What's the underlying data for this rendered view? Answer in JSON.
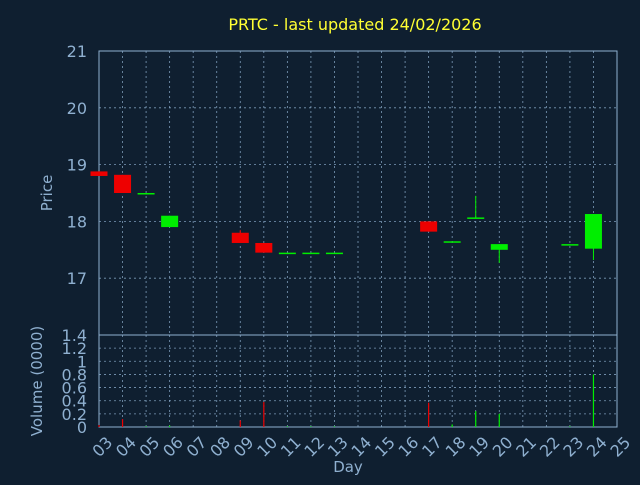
{
  "chart_data": {
    "type": "candlestick",
    "title": "PRTC - last updated 24/02/2026",
    "colors": {
      "background": "#0f1f30",
      "title": "#ffff33",
      "axis_text": "#8fb0d0",
      "axis_line": "#8fb0d0",
      "grid": "#8fb0d0",
      "up": "#00ee00",
      "down": "#ee0000"
    },
    "xlabel": "Day",
    "x_ticks": [
      "03",
      "04",
      "05",
      "06",
      "07",
      "08",
      "09",
      "10",
      "11",
      "12",
      "13",
      "14",
      "15",
      "16",
      "17",
      "18",
      "19",
      "20",
      "21",
      "22",
      "23",
      "24",
      "25"
    ],
    "xlim": [
      3,
      25
    ],
    "price_panel": {
      "ylabel": "Price",
      "ylim": [
        16.0,
        21.0
      ],
      "y_ticks": [
        {
          "value": 21,
          "label": "21"
        },
        {
          "value": 20,
          "label": "20"
        },
        {
          "value": 19,
          "label": "19"
        },
        {
          "value": 18,
          "label": "18"
        },
        {
          "value": 17,
          "label": "17"
        }
      ]
    },
    "volume_panel": {
      "ylabel": "Volume (0000)",
      "ylim": [
        0,
        1.4
      ],
      "y_ticks": [
        {
          "value": 0,
          "label": "0"
        },
        {
          "value": 0.2,
          "label": "0.2"
        },
        {
          "value": 0.4,
          "label": "0.4"
        },
        {
          "value": 0.6,
          "label": "0.6"
        },
        {
          "value": 0.8,
          "label": "0.8"
        },
        {
          "value": 1.0,
          "label": "1"
        },
        {
          "value": 1.2,
          "label": "1.2"
        },
        {
          "value": 1.4,
          "label": "1.4"
        }
      ]
    },
    "candles": [
      {
        "day": 3,
        "open": 18.88,
        "high": 18.88,
        "low": 18.8,
        "close": 18.8,
        "volume": 0.03
      },
      {
        "day": 4,
        "open": 18.82,
        "high": 18.82,
        "low": 18.5,
        "close": 18.5,
        "volume": 0.12
      },
      {
        "day": 5,
        "open": 18.5,
        "high": 18.5,
        "low": 18.5,
        "close": 18.5,
        "volume": 0.01
      },
      {
        "day": 6,
        "open": 17.9,
        "high": 18.1,
        "low": 17.9,
        "close": 18.1,
        "volume": 0.02
      },
      {
        "day": 9,
        "open": 17.8,
        "high": 17.85,
        "low": 17.62,
        "close": 17.62,
        "volume": 0.1
      },
      {
        "day": 10,
        "open": 17.62,
        "high": 17.62,
        "low": 17.45,
        "close": 17.45,
        "volume": 0.38
      },
      {
        "day": 11,
        "open": 17.45,
        "high": 17.45,
        "low": 17.45,
        "close": 17.45,
        "volume": 0.01
      },
      {
        "day": 12,
        "open": 17.45,
        "high": 17.45,
        "low": 17.45,
        "close": 17.45,
        "volume": 0.01
      },
      {
        "day": 13,
        "open": 17.45,
        "high": 17.45,
        "low": 17.45,
        "close": 17.45,
        "volume": 0.01
      },
      {
        "day": 17,
        "open": 18.0,
        "high": 18.0,
        "low": 17.82,
        "close": 17.82,
        "volume": 0.37
      },
      {
        "day": 18,
        "open": 17.65,
        "high": 17.65,
        "low": 17.65,
        "close": 17.65,
        "volume": 0.04
      },
      {
        "day": 19,
        "open": 18.07,
        "high": 18.45,
        "low": 18.07,
        "close": 18.07,
        "volume": 0.24
      },
      {
        "day": 20,
        "open": 17.5,
        "high": 17.6,
        "low": 17.27,
        "close": 17.6,
        "volume": 0.2
      },
      {
        "day": 23,
        "open": 17.6,
        "high": 17.6,
        "low": 17.6,
        "close": 17.6,
        "volume": 0.01
      },
      {
        "day": 24,
        "open": 17.52,
        "high": 18.13,
        "low": 17.32,
        "close": 18.13,
        "volume": 0.8
      }
    ]
  }
}
